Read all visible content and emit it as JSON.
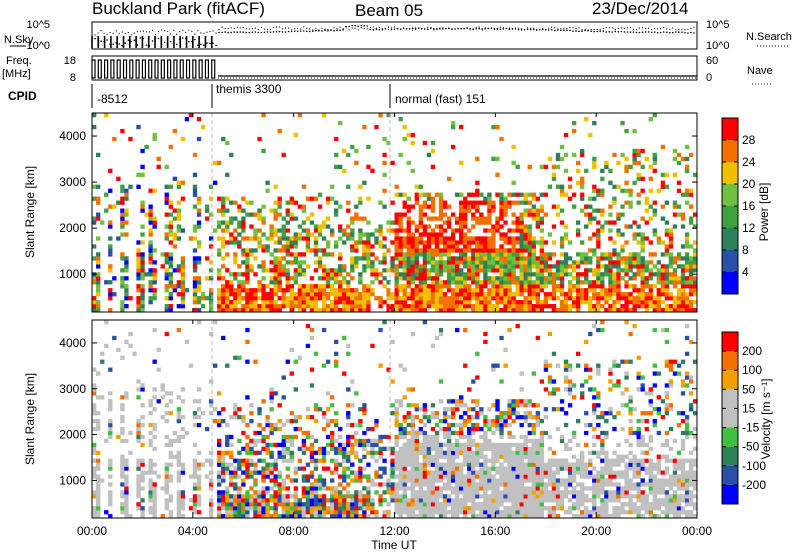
{
  "header": {
    "site": "Buckland Park (fitACF)",
    "beam": "Beam 05",
    "date": "23/Dec/2014"
  },
  "top_panels": {
    "nsky_label": "N.Sky",
    "nsearch_label": "N.Search",
    "freq_label": "Freq.",
    "freq_unit": "[MHz]",
    "nave_label": "Nave",
    "cpid_label": "CPID",
    "noise_ticks": [
      "10^5",
      "10^0"
    ],
    "freq_ticks": [
      "18",
      "8"
    ],
    "nave_ticks": [
      "60",
      "0"
    ],
    "cpid_segments": [
      {
        "label": "-8512",
        "start_hour": 0.0,
        "end_hour": 5.0
      },
      {
        "label": "themis 3300",
        "start_hour": 5.0,
        "end_hour": 12.0
      },
      {
        "label": "normal (fast) 151",
        "start_hour": 12.0,
        "end_hour": 24.0
      }
    ]
  },
  "xaxis": {
    "title": "Time UT",
    "ticks": [
      "00:00",
      "04:00",
      "08:00",
      "12:00",
      "16:00",
      "20:00",
      "00:00"
    ]
  },
  "colors": {
    "power_scale": [
      "#0000ff",
      "#2a4fa8",
      "#2e7f5a",
      "#40a040",
      "#70c040",
      "#f0c000",
      "#f07000",
      "#ff0000"
    ],
    "velocity_scale": [
      "#0000ff",
      "#2a4fa8",
      "#2e7f5a",
      "#40c040",
      "#c0c0c0",
      "#c0c0c0",
      "#f0a000",
      "#f07000",
      "#ff0000"
    ]
  },
  "chart_data": [
    {
      "type": "heatmap",
      "name_label": "power",
      "ylabel": "Slant Range [km]",
      "yticks": [
        "1000",
        "2000",
        "3000",
        "4000"
      ],
      "ylim": [
        180,
        4500
      ],
      "xlim_hours": [
        0,
        24
      ],
      "colorbar_label": "Power [dB]",
      "colorbar_ticks": [
        "4",
        "8",
        "12",
        "16",
        "20",
        "24",
        "28"
      ],
      "regions": [
        {
          "start_hour": 0.0,
          "end_hour": 5.0,
          "range_km": [
            200,
            3000
          ],
          "level": "mixed low-to-high"
        },
        {
          "start_hour": 5.0,
          "end_hour": 11.0,
          "range_km": [
            200,
            2700
          ],
          "level": "high near ground scatter"
        },
        {
          "start_hour": 12.0,
          "end_hour": 18.0,
          "range_km": [
            200,
            2800
          ],
          "level": "strong red 24-28 dB"
        },
        {
          "start_hour": 18.0,
          "end_hour": 24.0,
          "range_km": [
            200,
            3500
          ],
          "level": "high near 500 km"
        }
      ]
    },
    {
      "type": "heatmap",
      "name_label": "velocity",
      "ylabel": "Slant Range [km]",
      "yticks": [
        "1000",
        "2000",
        "3000",
        "4000"
      ],
      "ylim": [
        180,
        4500
      ],
      "xlim_hours": [
        0,
        24
      ],
      "colorbar_label": "Velocity [m s⁻¹]",
      "colorbar_ticks": [
        "200",
        "100",
        "50",
        "15",
        "-15",
        "-50",
        "-100",
        "-200"
      ],
      "regions": [
        {
          "start_hour": 0.0,
          "end_hour": 5.0,
          "range_km": [
            200,
            3000
          ],
          "level": "mostly ground scatter grey"
        },
        {
          "start_hour": 5.0,
          "end_hour": 12.0,
          "range_km": [
            200,
            2800
          ],
          "level": "mixed"
        },
        {
          "start_hour": 12.0,
          "end_hour": 24.0,
          "range_km": [
            200,
            2000
          ],
          "level": "ground scatter grey"
        }
      ]
    }
  ]
}
